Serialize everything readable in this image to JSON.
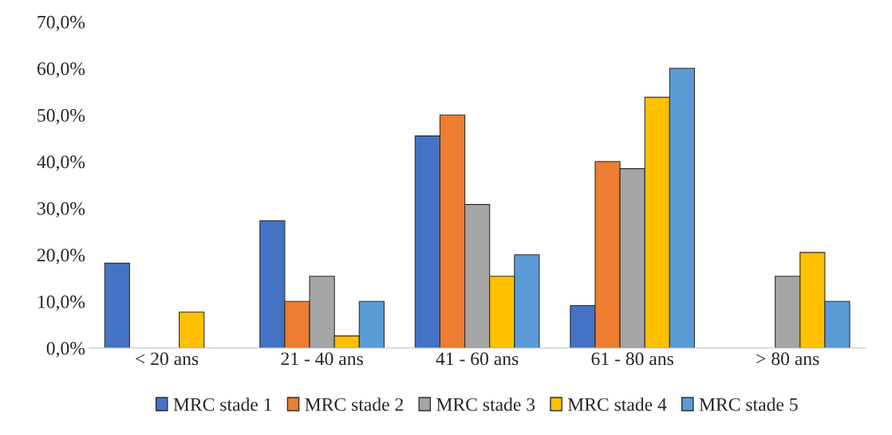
{
  "chart_data": {
    "type": "bar",
    "categories": [
      "< 20 ans",
      "21 - 40 ans",
      "41 - 60 ans",
      "61 - 80 ans",
      "> 80 ans"
    ],
    "series": [
      {
        "name": "MRC stade 1",
        "color": "#4472c4",
        "values": [
          18.2,
          27.3,
          45.5,
          9.1,
          null
        ]
      },
      {
        "name": "MRC stade 2",
        "color": "#ed7d31",
        "values": [
          null,
          10.0,
          50.0,
          40.0,
          null
        ]
      },
      {
        "name": "MRC stade 3",
        "color": "#a5a5a5",
        "values": [
          null,
          15.4,
          30.8,
          38.5,
          15.4
        ]
      },
      {
        "name": "MRC stade 4",
        "color": "#ffc000",
        "values": [
          7.7,
          2.6,
          15.4,
          53.8,
          20.5
        ]
      },
      {
        "name": "MRC stade 5",
        "color": "#5b9bd5",
        "values": [
          null,
          10.0,
          20.0,
          60.0,
          10.0
        ]
      }
    ],
    "ylim": [
      0,
      70
    ],
    "yticks": [
      {
        "value": 0,
        "label": "0,0%"
      },
      {
        "value": 10,
        "label": "10,0%"
      },
      {
        "value": 20,
        "label": "20,0%"
      },
      {
        "value": 30,
        "label": "30,0%"
      },
      {
        "value": 40,
        "label": "40,0%"
      },
      {
        "value": 50,
        "label": "50,0%"
      },
      {
        "value": 60,
        "label": "60,0%"
      },
      {
        "value": 70,
        "label": "70,0%"
      }
    ],
    "grid": false,
    "legend": "bottom"
  }
}
